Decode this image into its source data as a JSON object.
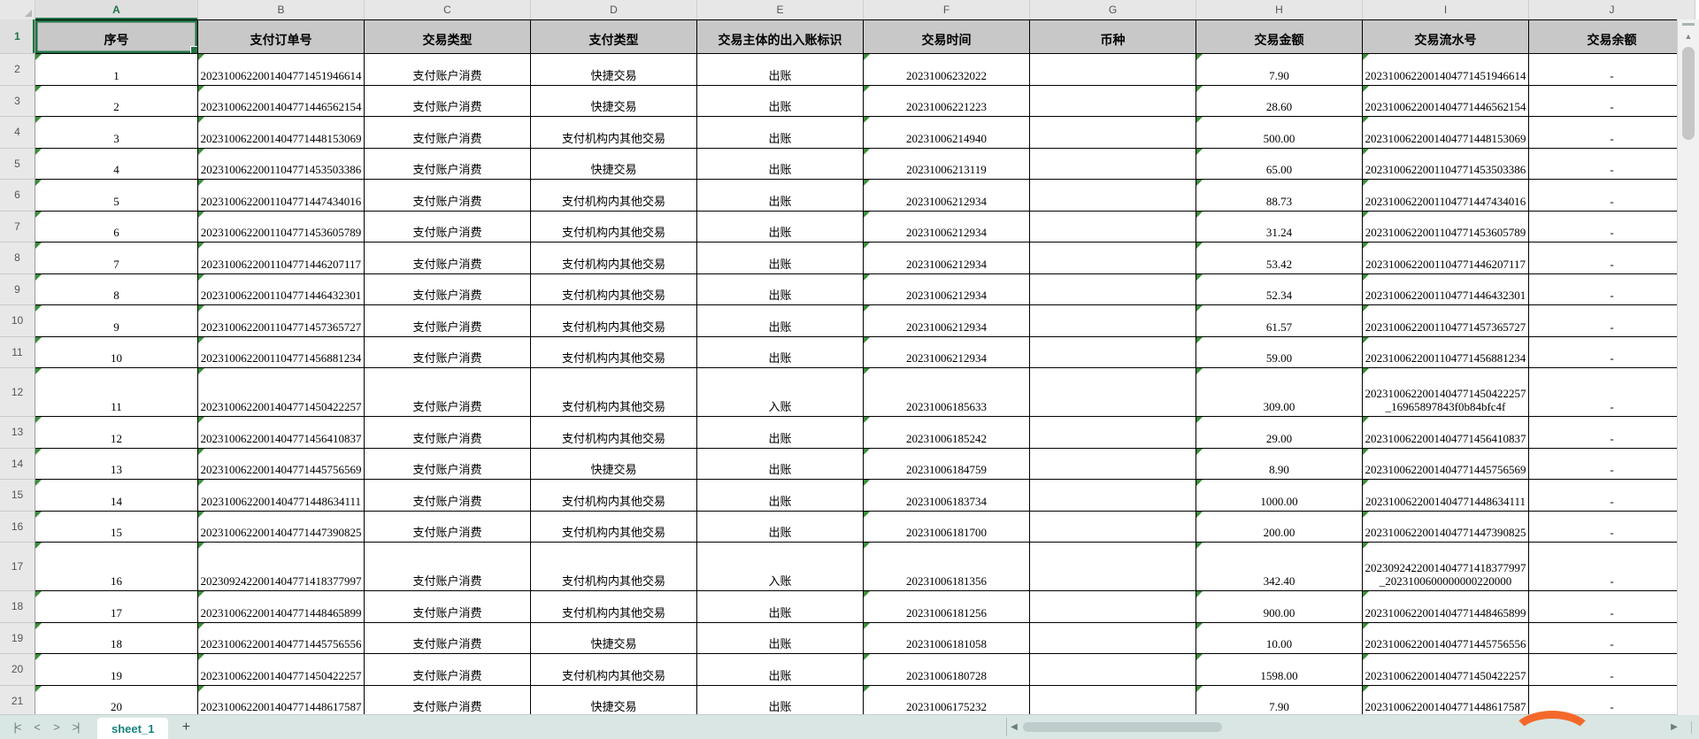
{
  "column_strip": {
    "letters": [
      "A",
      "B",
      "C",
      "D",
      "E",
      "F",
      "G",
      "H",
      "I",
      "J"
    ],
    "selected_letter": "A"
  },
  "selection": {
    "cell": "A1"
  },
  "table": {
    "headers": [
      "序号",
      "支付订单号",
      "交易类型",
      "支付类型",
      "交易主体的出入账标识",
      "交易时间",
      "币种",
      "交易金额",
      "交易流水号",
      "交易余额"
    ],
    "rows": [
      {
        "seq": "1",
        "order": "2023100622001404771451946614",
        "type": "支付账户消费",
        "pay_type": "快捷交易",
        "direction": "出账",
        "time": "20231006232022",
        "currency": "",
        "amount": "7.90",
        "flow": "2023100622001404771451946614",
        "balance": "-"
      },
      {
        "seq": "2",
        "order": "2023100622001404771446562154",
        "type": "支付账户消费",
        "pay_type": "快捷交易",
        "direction": "出账",
        "time": "20231006221223",
        "currency": "",
        "amount": "28.60",
        "flow": "2023100622001404771446562154",
        "balance": "-"
      },
      {
        "seq": "3",
        "order": "2023100622001404771448153069",
        "type": "支付账户消费",
        "pay_type": "支付机构内其他交易",
        "direction": "出账",
        "time": "20231006214940",
        "currency": "",
        "amount": "500.00",
        "flow": "2023100622001404771448153069",
        "balance": "-"
      },
      {
        "seq": "4",
        "order": "2023100622001104771453503386",
        "type": "支付账户消费",
        "pay_type": "快捷交易",
        "direction": "出账",
        "time": "20231006213119",
        "currency": "",
        "amount": "65.00",
        "flow": "2023100622001104771453503386",
        "balance": "-"
      },
      {
        "seq": "5",
        "order": "2023100622001104771447434016",
        "type": "支付账户消费",
        "pay_type": "支付机构内其他交易",
        "direction": "出账",
        "time": "20231006212934",
        "currency": "",
        "amount": "88.73",
        "flow": "2023100622001104771447434016",
        "balance": "-"
      },
      {
        "seq": "6",
        "order": "2023100622001104771453605789",
        "type": "支付账户消费",
        "pay_type": "支付机构内其他交易",
        "direction": "出账",
        "time": "20231006212934",
        "currency": "",
        "amount": "31.24",
        "flow": "2023100622001104771453605789",
        "balance": "-"
      },
      {
        "seq": "7",
        "order": "2023100622001104771446207117",
        "type": "支付账户消费",
        "pay_type": "支付机构内其他交易",
        "direction": "出账",
        "time": "20231006212934",
        "currency": "",
        "amount": "53.42",
        "flow": "2023100622001104771446207117",
        "balance": "-"
      },
      {
        "seq": "8",
        "order": "2023100622001104771446432301",
        "type": "支付账户消费",
        "pay_type": "支付机构内其他交易",
        "direction": "出账",
        "time": "20231006212934",
        "currency": "",
        "amount": "52.34",
        "flow": "2023100622001104771446432301",
        "balance": "-"
      },
      {
        "seq": "9",
        "order": "2023100622001104771457365727",
        "type": "支付账户消费",
        "pay_type": "支付机构内其他交易",
        "direction": "出账",
        "time": "20231006212934",
        "currency": "",
        "amount": "61.57",
        "flow": "2023100622001104771457365727",
        "balance": "-"
      },
      {
        "seq": "10",
        "order": "2023100622001104771456881234",
        "type": "支付账户消费",
        "pay_type": "支付机构内其他交易",
        "direction": "出账",
        "time": "20231006212934",
        "currency": "",
        "amount": "59.00",
        "flow": "2023100622001104771456881234",
        "balance": "-"
      },
      {
        "seq": "11",
        "order": "2023100622001404771450422257",
        "type": "支付账户消费",
        "pay_type": "支付机构内其他交易",
        "direction": "入账",
        "time": "20231006185633",
        "currency": "",
        "amount": "309.00",
        "flow": "2023100622001404771450422257_16965897843f0b84bfc4f",
        "balance": "-"
      },
      {
        "seq": "12",
        "order": "2023100622001404771456410837",
        "type": "支付账户消费",
        "pay_type": "支付机构内其他交易",
        "direction": "出账",
        "time": "20231006185242",
        "currency": "",
        "amount": "29.00",
        "flow": "2023100622001404771456410837",
        "balance": "-"
      },
      {
        "seq": "13",
        "order": "2023100622001404771445756569",
        "type": "支付账户消费",
        "pay_type": "快捷交易",
        "direction": "出账",
        "time": "20231006184759",
        "currency": "",
        "amount": "8.90",
        "flow": "2023100622001404771445756569",
        "balance": "-"
      },
      {
        "seq": "14",
        "order": "2023100622001404771448634111",
        "type": "支付账户消费",
        "pay_type": "支付机构内其他交易",
        "direction": "出账",
        "time": "20231006183734",
        "currency": "",
        "amount": "1000.00",
        "flow": "2023100622001404771448634111",
        "balance": "-"
      },
      {
        "seq": "15",
        "order": "2023100622001404771447390825",
        "type": "支付账户消费",
        "pay_type": "支付机构内其他交易",
        "direction": "出账",
        "time": "20231006181700",
        "currency": "",
        "amount": "200.00",
        "flow": "2023100622001404771447390825",
        "balance": "-"
      },
      {
        "seq": "16",
        "order": "2023092422001404771418377997",
        "type": "支付账户消费",
        "pay_type": "支付机构内其他交易",
        "direction": "入账",
        "time": "20231006181356",
        "currency": "",
        "amount": "342.40",
        "flow": "2023092422001404771418377997_2023100600000000220000",
        "balance": "-"
      },
      {
        "seq": "17",
        "order": "2023100622001404771448465899",
        "type": "支付账户消费",
        "pay_type": "支付机构内其他交易",
        "direction": "出账",
        "time": "20231006181256",
        "currency": "",
        "amount": "900.00",
        "flow": "2023100622001404771448465899",
        "balance": "-"
      },
      {
        "seq": "18",
        "order": "2023100622001404771445756556",
        "type": "支付账户消费",
        "pay_type": "快捷交易",
        "direction": "出账",
        "time": "20231006181058",
        "currency": "",
        "amount": "10.00",
        "flow": "2023100622001404771445756556",
        "balance": "-"
      },
      {
        "seq": "19",
        "order": "2023100622001404771450422257",
        "type": "支付账户消费",
        "pay_type": "支付机构内其他交易",
        "direction": "出账",
        "time": "20231006180728",
        "currency": "",
        "amount": "1598.00",
        "flow": "2023100622001404771450422257",
        "balance": "-"
      },
      {
        "seq": "20",
        "order": "2023100622001404771448617587",
        "type": "支付账户消费",
        "pay_type": "快捷交易",
        "direction": "出账",
        "time": "20231006175232",
        "currency": "",
        "amount": "7.90",
        "flow": "2023100622001404771448617587",
        "balance": "-"
      }
    ]
  },
  "sheet_bar": {
    "tab": "sheet_1",
    "add": "+",
    "nav": {
      "first": "|<",
      "prev": "<",
      "next": ">",
      "last": ">|"
    },
    "scroll_left": "◀",
    "scroll_right": "▶"
  },
  "scrollbar": {
    "up": "▲"
  },
  "colors": {
    "selection_green": "#217346",
    "indicator_green": "#3a8d3a",
    "header_fill": "#c8c8c8",
    "sheet_bar_fill": "#d9e6e4",
    "tab_text": "#18827c",
    "swoosh_orange": "#f4692b"
  }
}
